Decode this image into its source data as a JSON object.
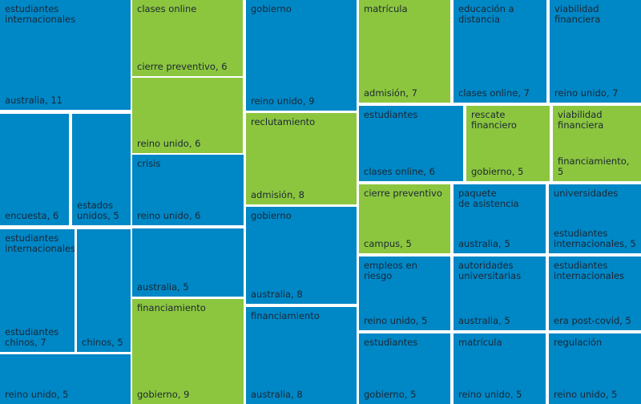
{
  "colors": {
    "blue": "#0087c6",
    "green": "#8cc63f"
  },
  "chart_data": {
    "type": "treemap",
    "tiles": [
      {
        "label": "estudiantes internacionales",
        "group": "australia",
        "value": 11,
        "color": "blue",
        "caption": "australia, 11"
      },
      {
        "label": "clases online",
        "group": "cierre preventivo",
        "value": 6,
        "color": "green",
        "caption": "cierre preventivo, 6"
      },
      {
        "label": "",
        "group": "reino unido",
        "value": 6,
        "color": "green",
        "caption": "reino unido, 6"
      },
      {
        "label": "gobierno",
        "group": "reino unido",
        "value": 9,
        "color": "blue",
        "caption": "reino unido, 9"
      },
      {
        "label": "matrícula",
        "group": "admisión",
        "value": 7,
        "color": "green",
        "caption": "admisión, 7"
      },
      {
        "label": "educación a\ndistancia",
        "group": "clases online",
        "value": 7,
        "color": "blue",
        "caption": "clases online, 7"
      },
      {
        "label": "viabilidad\nfinanciera",
        "group": "reino unido",
        "value": 7,
        "color": "blue",
        "caption": "reino unido, 7"
      },
      {
        "label": "",
        "group": "encuesta",
        "value": 6,
        "color": "blue",
        "caption": "encuesta, 6"
      },
      {
        "label": "",
        "group": "estados unidos",
        "value": 5,
        "color": "blue",
        "caption": "estados\nunidos, 5"
      },
      {
        "label": "crisis",
        "group": "reino unido",
        "value": 6,
        "color": "blue",
        "caption": "reino unido, 6"
      },
      {
        "label": "reclutamiento",
        "group": "admisión",
        "value": 8,
        "color": "green",
        "caption": "admisión, 8"
      },
      {
        "label": "estudiantes",
        "group": "clases online",
        "value": 6,
        "color": "blue",
        "caption": "clases online, 6"
      },
      {
        "label": "rescate financiero",
        "group": "gobierno",
        "value": 5,
        "color": "green",
        "caption": "gobierno, 5"
      },
      {
        "label": "viabilidad\nfinanciera",
        "group": "financiamiento",
        "value": 5,
        "color": "green",
        "caption": "financiamiento, 5"
      },
      {
        "label": "estudiantes internacionales",
        "group": "estudiantes chinos",
        "value": 7,
        "color": "blue",
        "caption": "estudiantes\nchinos, 7"
      },
      {
        "label": "",
        "group": "chinos",
        "value": 5,
        "color": "blue",
        "caption": "chinos, 5"
      },
      {
        "label": "",
        "group": "australia",
        "value": 5,
        "color": "blue",
        "caption": "australia, 5"
      },
      {
        "label": "gobierno",
        "group": "australia",
        "value": 8,
        "color": "blue",
        "caption": "australia, 8"
      },
      {
        "label": "cierre preventivo",
        "group": "campus",
        "value": 5,
        "color": "green",
        "caption": "campus, 5"
      },
      {
        "label": "paquete\nde asistencia",
        "group": "australia",
        "value": 5,
        "color": "blue",
        "caption": "australia, 5"
      },
      {
        "label": "universidades",
        "group": "estudiantes internacionales",
        "value": 5,
        "color": "blue",
        "caption": "estudiantes\ninternacionales, 5"
      },
      {
        "label": "empleos en riesgo",
        "group": "reino unido",
        "value": 5,
        "color": "blue",
        "caption": "reino unido, 5"
      },
      {
        "label": "autoridades\nuniversitarias",
        "group": "australia",
        "value": 5,
        "color": "blue",
        "caption": "australia, 5"
      },
      {
        "label": "estudiantes\ninternacionales",
        "group": "era post-covid",
        "value": 5,
        "color": "blue",
        "caption": "era post-covid, 5"
      },
      {
        "label": "",
        "group": "reino unido",
        "value": 5,
        "color": "blue",
        "caption": "reino unido, 5"
      },
      {
        "label": "financiamiento",
        "group": "gobierno",
        "value": 9,
        "color": "green",
        "caption": "gobierno, 9"
      },
      {
        "label": "financiamiento",
        "group": "australia",
        "value": 8,
        "color": "blue",
        "caption": "australia, 8"
      },
      {
        "label": "estudiantes",
        "group": "gobierno",
        "value": 5,
        "color": "blue",
        "caption": "gobierno, 5"
      },
      {
        "label": "matrícula",
        "group": "reino unido",
        "value": 5,
        "color": "blue",
        "caption": "reino unido, 5"
      },
      {
        "label": "regulación",
        "group": "reino unido",
        "value": 5,
        "color": "blue",
        "caption": "reino unido, 5"
      }
    ]
  }
}
